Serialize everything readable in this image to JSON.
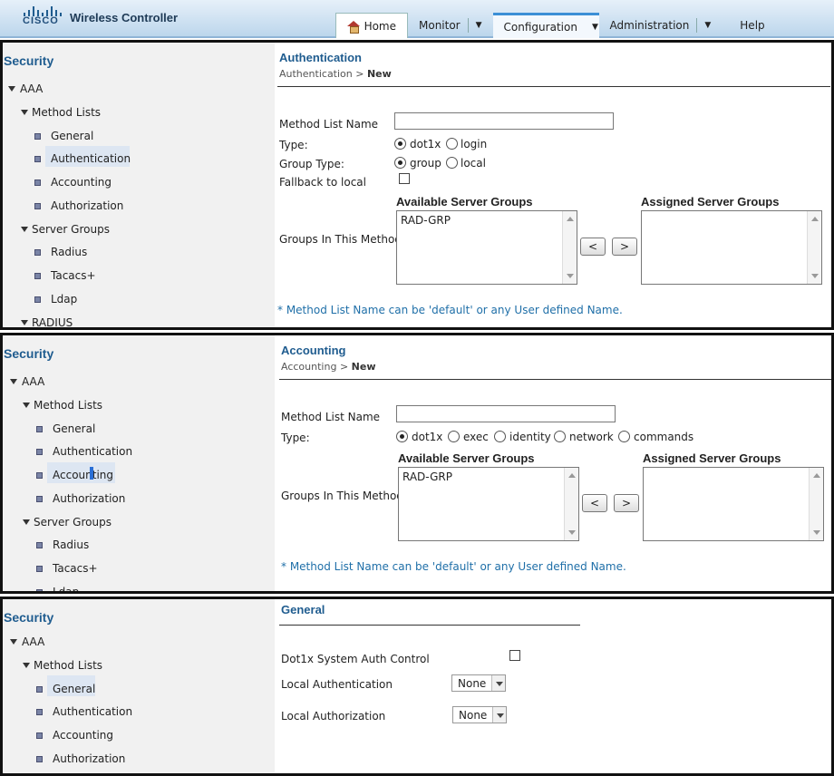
{
  "header": {
    "logo_text": "CISCO",
    "product": "Wireless Controller",
    "nav": [
      "Home",
      "Monitor",
      "Configuration",
      "Administration",
      "Help"
    ],
    "active_nav": "Configuration"
  },
  "sidebar": {
    "title": "Security",
    "aaa": "AAA",
    "method_lists": "Method Lists",
    "general": "General",
    "authentication": "Authentication",
    "accounting": "Accounting",
    "authorization": "Authorization",
    "server_groups": "Server Groups",
    "radius": "Radius",
    "tacacs": "Tacacs+",
    "ldap": "Ldap",
    "radius_top": "RADIUS"
  },
  "panel1": {
    "title": "Authentication",
    "crumb_root": "Authentication",
    "crumb_sep": ">",
    "crumb_leaf": "New",
    "method_list_name_label": "Method List Name",
    "method_list_name_value": "",
    "type_label": "Type:",
    "type_options": [
      "dot1x",
      "login"
    ],
    "group_type_label": "Group Type:",
    "group_type_options": [
      "group",
      "local"
    ],
    "fallback_label": "Fallback to local",
    "available_hdr": "Available Server Groups",
    "assigned_hdr": "Assigned Server Groups",
    "groups_label": "Groups In This Method",
    "available_items": [
      "RAD-GRP"
    ],
    "btn_left": "<",
    "btn_right": ">",
    "note": "* Method List Name can be 'default' or any User defined Name."
  },
  "panel2": {
    "title": "Accounting",
    "crumb_root": "Accounting",
    "crumb_sep": ">",
    "crumb_leaf": "New",
    "method_list_name_label": "Method List Name",
    "method_list_name_value": "",
    "type_label": "Type:",
    "type_options": [
      "dot1x",
      "exec",
      "identity",
      "network",
      "commands"
    ],
    "available_hdr": "Available Server Groups",
    "assigned_hdr": "Assigned Server Groups",
    "groups_label": "Groups In This Method",
    "available_items": [
      "RAD-GRP"
    ],
    "btn_left": "<",
    "btn_right": ">",
    "note": "* Method List Name can be 'default' or any User defined Name.",
    "sidebar_ldap_partial": "Ldap"
  },
  "panel3": {
    "title": "General",
    "dot1x_label": "Dot1x System Auth Control",
    "local_authn_label": "Local Authentication",
    "local_authn_value": "None",
    "local_authz_label": "Local Authorization",
    "local_authz_value": "None"
  }
}
